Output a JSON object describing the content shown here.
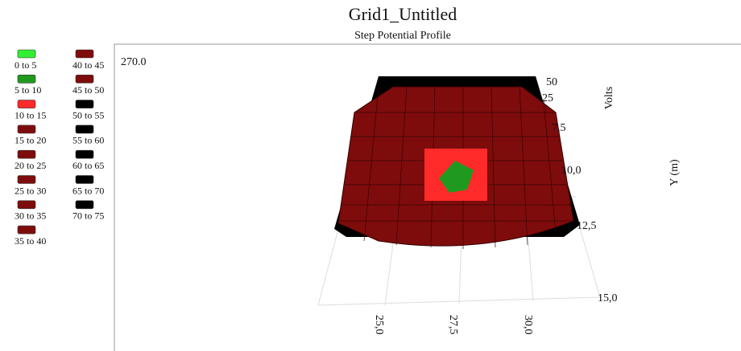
{
  "header": {
    "title": "Grid1_Untitled",
    "subtitle": "Step Potential Profile"
  },
  "legend": [
    {
      "label": "0 to 5",
      "color": "#33ee33"
    },
    {
      "label": "5 to 10",
      "color": "#1f9a1f"
    },
    {
      "label": "10 to 15",
      "color": "#ff2a2a"
    },
    {
      "label": "15 to 20",
      "color": "#7e0c0c"
    },
    {
      "label": "20 to 25",
      "color": "#7e0c0c"
    },
    {
      "label": "25 to 30",
      "color": "#7e0c0c"
    },
    {
      "label": "30 to 35",
      "color": "#7e0c0c"
    },
    {
      "label": "35 to 40",
      "color": "#7e0c0c"
    },
    {
      "label": "40 to 45",
      "color": "#7e0c0c"
    },
    {
      "label": "45 to 50",
      "color": "#7e0c0c"
    },
    {
      "label": "50 to 55",
      "color": "#000000"
    },
    {
      "label": "55 to 60",
      "color": "#000000"
    },
    {
      "label": "60 to 65",
      "color": "#000000"
    },
    {
      "label": "65 to 70",
      "color": "#000000"
    },
    {
      "label": "70 to 75",
      "color": "#000000"
    }
  ],
  "view_angle": "270.0",
  "z_axis": {
    "label": "Volts",
    "ticks": [
      "50",
      "25"
    ]
  },
  "y_axis": {
    "label": "Y (m)",
    "ticks": [
      "7,5",
      "10,0",
      "12,5",
      "15,0"
    ]
  },
  "x_axis": {
    "ticks": [
      "25,0",
      "27,5",
      "30,0"
    ]
  }
}
